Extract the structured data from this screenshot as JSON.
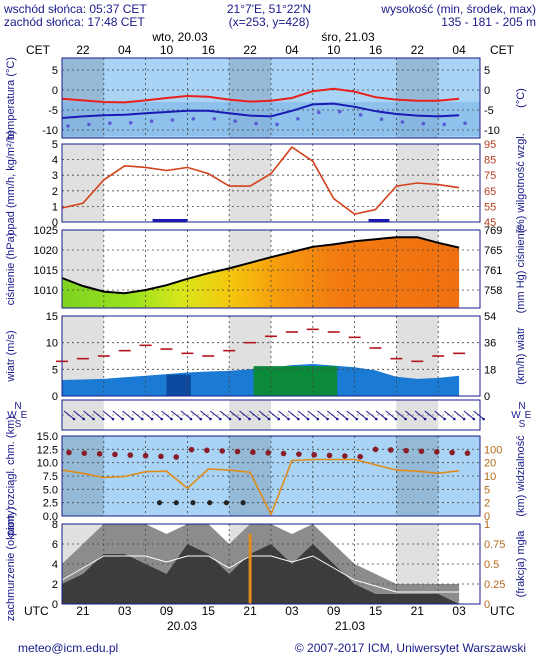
{
  "header": {
    "sunrise": "wschód słońca: 05:37 CET",
    "sunset": "zachód słońca: 17:48 CET",
    "coords": "21°7'E, 51°22'N",
    "grid": "(x=253, y=428)",
    "elev_title": "wysokość (min, środek, max)",
    "elev_values": "135 - 181 - 205 m",
    "tz": "CET",
    "day1": "wto, 20.03",
    "day2": "śro, 21.03"
  },
  "top_ticks": [
    "22",
    "04",
    "10",
    "16",
    "22",
    "04",
    "10",
    "16",
    "22",
    "04"
  ],
  "bottom_ticks": [
    "21",
    "03",
    "09",
    "15",
    "21",
    "03",
    "09",
    "15",
    "21",
    "03"
  ],
  "bottom_tz": "UTC",
  "bottom_dates": [
    "20.03",
    "21.03"
  ],
  "footer": {
    "email": "meteo@icm.edu.pl",
    "copyright": "© 2007-2017 ICM, Uniwersytet Warszawski"
  },
  "colors": {
    "frame": "#1a1a8c",
    "panel_blue": "#a9d4f5",
    "night": "#d8d8d8",
    "temp_line": "#e8201c",
    "dew_line": "#1a1ab4",
    "humidity_line": "#d4401c",
    "pressure_line": "#000000",
    "wind_area": "#1a7ad4",
    "gust_marks": "#b4141c",
    "visibility_line": "#e08c1c"
  },
  "chart_data": [
    {
      "type": "line",
      "panel": "temperature",
      "ylabel": "temperatura (°C)",
      "ylabel_right": "(°C)",
      "ylim": [
        -12,
        8
      ],
      "yticks": [
        -10,
        -5,
        0,
        5
      ],
      "x": [
        0,
        3,
        6,
        9,
        12,
        15,
        18,
        21,
        24,
        27,
        30,
        33,
        36,
        39,
        42,
        45,
        48,
        51,
        54,
        57
      ],
      "series": [
        {
          "name": "temperature",
          "values": [
            -2.2,
            -2.6,
            -3.0,
            -3.1,
            -2.6,
            -2.0,
            -1.5,
            -1.7,
            -2.4,
            -2.9,
            -2.7,
            -2.0,
            -0.3,
            0.3,
            -0.4,
            -1.8,
            -2.4,
            -2.7,
            -2.7,
            -2.2
          ]
        },
        {
          "name": "perceived",
          "values": [
            -7.0,
            -6.6,
            -6.3,
            -6.2,
            -5.8,
            -5.5,
            -5.2,
            -5.2,
            -5.8,
            -6.4,
            -6.6,
            -5.2,
            -3.6,
            -3.4,
            -4.2,
            -5.3,
            -6.0,
            -6.4,
            -6.6,
            -6.3
          ]
        }
      ]
    },
    {
      "type": "line",
      "panel": "precipitation",
      "ylabel": "opad (mm/h, kg/m²/h)",
      "ylabel_right": "(%) wilgotność wzgl.",
      "ylim": [
        0,
        5
      ],
      "yticks": [
        0,
        1,
        2,
        3,
        4,
        5
      ],
      "y2lim": [
        45,
        95
      ],
      "y2ticks": [
        45,
        55,
        65,
        75,
        85,
        95
      ],
      "x": [
        0,
        3,
        6,
        9,
        12,
        15,
        18,
        21,
        24,
        27,
        30,
        33,
        36,
        39,
        42,
        45,
        48,
        51,
        54,
        57
      ],
      "series": [
        {
          "name": "relative humidity",
          "values": [
            54,
            57,
            72,
            81,
            80,
            78,
            80,
            76,
            68,
            68,
            76,
            93,
            84,
            60,
            50,
            53,
            68,
            70,
            69,
            67
          ]
        }
      ]
    },
    {
      "type": "area",
      "panel": "pressure",
      "ylabel": "ciśnienie (hPa)",
      "ylabel_right": "(mm Hg) ciśnienie",
      "ylim": [
        1005.5,
        1025
      ],
      "yticks": [
        1010,
        1015,
        1020,
        1025
      ],
      "y2ticks": [
        758,
        761,
        765,
        769
      ],
      "x": [
        0,
        3,
        6,
        9,
        12,
        15,
        18,
        21,
        24,
        27,
        30,
        33,
        36,
        39,
        42,
        45,
        48,
        51,
        54,
        57
      ],
      "series": [
        {
          "name": "pressure",
          "values": [
            1013.0,
            1011.0,
            1009.6,
            1009.2,
            1010.0,
            1011.2,
            1012.8,
            1014.2,
            1015.4,
            1016.8,
            1018.2,
            1019.5,
            1020.8,
            1021.4,
            1022.2,
            1022.7,
            1023.2,
            1023.2,
            1021.8,
            1020.6
          ]
        }
      ]
    },
    {
      "type": "area",
      "panel": "wind",
      "ylabel": "wiatr (m/s)",
      "ylabel_right": "(km/h) wiatr",
      "ylim": [
        0,
        15
      ],
      "yticks": [
        0,
        5,
        10,
        15
      ],
      "y2ticks": [
        0,
        18,
        36,
        54
      ],
      "x": [
        0,
        3,
        6,
        9,
        12,
        15,
        18,
        21,
        24,
        27,
        30,
        33,
        36,
        39,
        42,
        45,
        48,
        51,
        54,
        57
      ],
      "series": [
        {
          "name": "wind speed",
          "values": [
            3.0,
            3.1,
            3.2,
            3.5,
            3.8,
            4.1,
            4.4,
            4.6,
            4.7,
            5.0,
            5.3,
            5.8,
            6.0,
            5.7,
            5.4,
            4.8,
            3.6,
            3.2,
            3.4,
            3.8
          ]
        },
        {
          "name": "gusts",
          "values": [
            6.5,
            7.0,
            7.5,
            8.5,
            9.5,
            8.8,
            8.0,
            7.5,
            8.5,
            10.0,
            11.2,
            12.0,
            12.5,
            12.0,
            11.0,
            9.0,
            7.0,
            6.5,
            7.5,
            8.0
          ]
        }
      ]
    },
    {
      "type": "scatter",
      "panel": "wind direction",
      "labels": [
        "N",
        "E",
        "S",
        "W"
      ]
    },
    {
      "type": "line",
      "panel": "visibility",
      "ylabel": "pion. rozciągl. chm. (km)",
      "ylabel_right": "(km) widzialność",
      "ylim": [
        0,
        15
      ],
      "yticks": [
        0.0,
        2.5,
        5.0,
        7.5,
        10.0,
        12.5,
        15.0
      ],
      "y2ticks": [
        0,
        2,
        5,
        10,
        20,
        100
      ],
      "x": [
        0,
        3,
        6,
        9,
        12,
        15,
        18,
        21,
        24,
        27,
        30,
        33,
        36,
        39,
        42,
        45,
        48,
        51,
        54,
        57
      ],
      "series": [
        {
          "name": "visibility",
          "values": [
            8.6,
            8.0,
            7.2,
            7.4,
            8.3,
            8.4,
            5.2,
            8.8,
            8.6,
            8.2,
            0.3,
            10.4,
            10.6,
            10.6,
            10.6,
            9.6,
            8.6,
            8.4,
            8.0,
            8.5
          ]
        }
      ]
    },
    {
      "type": "area",
      "panel": "cloud cover",
      "ylabel": "zachmurzenie (oktanty)",
      "ylabel_right": "(frakcja) mgła",
      "ylim": [
        0,
        8
      ],
      "yticks": [
        0,
        2,
        4,
        6,
        8
      ],
      "y2ticks": [
        0,
        0.25,
        0.5,
        0.75,
        1
      ],
      "x": [
        0,
        3,
        6,
        9,
        12,
        15,
        18,
        21,
        24,
        27,
        30,
        33,
        36,
        39,
        42,
        45,
        48,
        51,
        54,
        57
      ],
      "series": [
        {
          "name": "total cloud",
          "values": [
            4,
            6,
            8,
            8,
            8,
            7,
            8,
            8,
            6,
            8,
            8,
            7,
            8,
            6,
            4,
            3,
            2,
            2,
            2,
            2
          ]
        },
        {
          "name": "low cloud",
          "values": [
            2,
            3,
            5,
            5,
            4,
            3,
            6,
            5,
            3,
            5,
            6,
            4,
            6,
            4,
            2,
            1,
            1,
            1,
            1,
            0
          ]
        }
      ]
    }
  ]
}
